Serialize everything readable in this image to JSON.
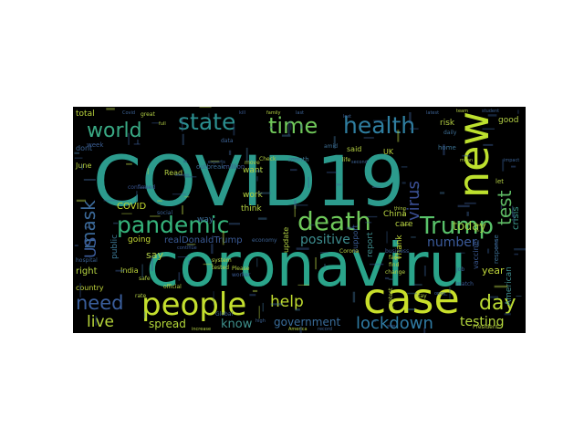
{
  "background_color": "#000000",
  "page_color": "#ffffff",
  "words": [
    {
      "text": "COVID19",
      "color": "#2c9b8d",
      "weight": 1.0
    },
    {
      "text": "coronaviru",
      "color": "#2aa48a",
      "weight": 0.95
    },
    {
      "text": "case",
      "color": "#c8df2a",
      "weight": 0.62
    },
    {
      "text": "new",
      "color": "#bde02e",
      "weight": 0.52
    },
    {
      "text": "people",
      "color": "#c4df2e",
      "weight": 0.5
    },
    {
      "text": "pandemic",
      "color": "#35b37b",
      "weight": 0.42
    },
    {
      "text": "death",
      "color": "#6ec85a",
      "weight": 0.38
    },
    {
      "text": "Trump",
      "color": "#58c16a",
      "weight": 0.36
    },
    {
      "text": "health",
      "color": "#2f7ea0",
      "weight": 0.35
    },
    {
      "text": "state",
      "color": "#2b8e8f",
      "weight": 0.33
    },
    {
      "text": "time",
      "color": "#70c85a",
      "weight": 0.33
    },
    {
      "text": "world",
      "color": "#39a984",
      "weight": 0.31
    },
    {
      "text": "day",
      "color": "#bcdc33",
      "weight": 0.3
    },
    {
      "text": "lockdown",
      "color": "#2f7aa2",
      "weight": 0.28
    },
    {
      "text": "need",
      "color": "#3a5e9c",
      "weight": 0.28
    },
    {
      "text": "test",
      "color": "#5eb964",
      "weight": 0.28
    },
    {
      "text": "mask",
      "color": "#3c6a9a",
      "weight": 0.27
    },
    {
      "text": "virus",
      "color": "#3a4e93",
      "weight": 0.26
    },
    {
      "text": "help",
      "color": "#c1dc2f",
      "weight": 0.24
    },
    {
      "text": "live",
      "color": "#b7d53a",
      "weight": 0.24
    },
    {
      "text": "US",
      "color": "#3b5c9b",
      "weight": 0.22
    },
    {
      "text": "positive",
      "color": "#3d8d8f",
      "weight": 0.2
    },
    {
      "text": "testing",
      "color": "#b4d73c",
      "weight": 0.2
    },
    {
      "text": "number",
      "color": "#3a5a9a",
      "weight": 0.18
    },
    {
      "text": "today",
      "color": "#9ccf45",
      "weight": 0.17
    },
    {
      "text": "know",
      "color": "#3e8f8b",
      "weight": 0.16
    },
    {
      "text": "spread",
      "color": "#b2d639",
      "weight": 0.16
    },
    {
      "text": "government",
      "color": "#3a6d9b",
      "weight": 0.14
    },
    {
      "text": "realDonaldTrump",
      "color": "#3a5a95",
      "weight": 0.14
    },
    {
      "text": "crisis",
      "color": "#3d9a8c",
      "weight": 0.13
    },
    {
      "text": "say",
      "color": "#b4d24a",
      "weight": 0.13
    },
    {
      "text": "right",
      "color": "#b7d541",
      "weight": 0.12
    },
    {
      "text": "year",
      "color": "#c0d73a",
      "weight": 0.12
    },
    {
      "text": "American",
      "color": "#3f8c8d",
      "weight": 0.11
    },
    {
      "text": "going",
      "color": "#c4d934",
      "weight": 0.11
    },
    {
      "text": "COVID",
      "color": "#c5dc2f",
      "weight": 0.11
    },
    {
      "text": "China",
      "color": "#b8d441",
      "weight": 0.1
    },
    {
      "text": "report",
      "color": "#3f8d8d",
      "weight": 0.1
    },
    {
      "text": "think",
      "color": "#b4d241",
      "weight": 0.1
    },
    {
      "text": "work",
      "color": "#b6d340",
      "weight": 0.1
    },
    {
      "text": "way",
      "color": "#3d6e9a",
      "weight": 0.1
    },
    {
      "text": "care",
      "color": "#b7d242",
      "weight": 0.1
    },
    {
      "text": "public",
      "color": "#3c7a97",
      "weight": 0.1
    },
    {
      "text": "support",
      "color": "#3b5e97",
      "weight": 0.09
    },
    {
      "text": "update",
      "color": "#b1d043",
      "weight": 0.09
    },
    {
      "text": "want",
      "color": "#b2d143",
      "weight": 0.09
    },
    {
      "text": "India",
      "color": "#bed63b",
      "weight": 0.09
    },
    {
      "text": "home",
      "color": "#3c7293",
      "weight": 0.08
    },
    {
      "text": "total",
      "color": "#bcd63d",
      "weight": 0.09
    },
    {
      "text": "risk",
      "color": "#b6d142",
      "weight": 0.09
    },
    {
      "text": "good",
      "color": "#b3cf44",
      "weight": 0.09
    },
    {
      "text": "Thank",
      "color": "#c1d837",
      "weight": 0.08
    },
    {
      "text": "UK",
      "color": "#bcd43e",
      "weight": 0.08
    },
    {
      "text": "dont",
      "color": "#3c6494",
      "weight": 0.08
    },
    {
      "text": "June",
      "color": "#b8d340",
      "weight": 0.08
    },
    {
      "text": "country",
      "color": "#c0d53b",
      "weight": 0.08
    },
    {
      "text": "vaccine",
      "color": "#3a5994",
      "weight": 0.08
    },
    {
      "text": "Read",
      "color": "#b4d043",
      "weight": 0.08
    },
    {
      "text": "response",
      "color": "#3c6f95",
      "weight": 0.07
    },
    {
      "text": "said",
      "color": "#b5d142",
      "weight": 0.08
    },
    {
      "text": "month",
      "color": "#3d7694",
      "weight": 0.07
    },
    {
      "text": "outbreak",
      "color": "#3c6a94",
      "weight": 0.07
    },
    {
      "text": "million",
      "color": "#3d5290",
      "weight": 0.07
    },
    {
      "text": "week",
      "color": "#3b5e94",
      "weight": 0.07
    },
    {
      "text": "let",
      "color": "#b3cf44",
      "weight": 0.07
    },
    {
      "text": "data",
      "color": "#3c6294",
      "weight": 0.06
    },
    {
      "text": "life",
      "color": "#b5d042",
      "weight": 0.06
    },
    {
      "text": "business",
      "color": "#3a5a94",
      "weight": 0.06
    },
    {
      "text": "confirmed",
      "color": "#3a5591",
      "weight": 0.06
    },
    {
      "text": "hospital",
      "color": "#3b6293",
      "weight": 0.06
    },
    {
      "text": "protest",
      "color": "#b1ce45",
      "weight": 0.06
    },
    {
      "text": "Please",
      "color": "#b5d042",
      "weight": 0.06
    },
    {
      "text": "safe",
      "color": "#b1ce45",
      "weight": 0.06
    },
    {
      "text": "official",
      "color": "#b3cf44",
      "weight": 0.06
    },
    {
      "text": "find",
      "color": "#b2cf44",
      "weight": 0.06
    },
    {
      "text": "change",
      "color": "#b4d043",
      "weight": 0.06
    },
    {
      "text": "second",
      "color": "#3c6294",
      "weight": 0.06
    },
    {
      "text": "face",
      "color": "#b3cf44",
      "weight": 0.06
    },
    {
      "text": "job",
      "color": "#3b5e94",
      "weight": 0.05
    },
    {
      "text": "match",
      "color": "#3a5a94",
      "weight": 0.05
    },
    {
      "text": "President",
      "color": "#b7d241",
      "weight": 0.05
    },
    {
      "text": "daily",
      "color": "#3d6e94",
      "weight": 0.05
    },
    {
      "text": "Check",
      "color": "#b5d042",
      "weight": 0.05
    },
    {
      "text": "great",
      "color": "#b3cf44",
      "weight": 0.05
    },
    {
      "text": "social",
      "color": "#3c6294",
      "weight": 0.05
    },
    {
      "text": "record",
      "color": "#3c6294",
      "weight": 0.05
    },
    {
      "text": "America",
      "color": "#b4d043",
      "weight": 0.05
    },
    {
      "text": "Global",
      "color": "#3c6294",
      "weight": 0.05
    },
    {
      "text": "Corona",
      "color": "#b5d042",
      "weight": 0.05
    },
    {
      "text": "economy",
      "color": "#3c6294",
      "weight": 0.05
    },
    {
      "text": "worker",
      "color": "#3a5a94",
      "weight": 0.05
    },
    {
      "text": "system",
      "color": "#b4d043",
      "weight": 0.05
    },
    {
      "text": "increase",
      "color": "#b3cf44",
      "weight": 0.05
    },
    {
      "text": "rate",
      "color": "#b3cf44",
      "weight": 0.05
    },
    {
      "text": "high",
      "color": "#3c6294",
      "weight": 0.05
    },
    {
      "text": "stay",
      "color": "#b5d042",
      "weight": 0.05
    },
    {
      "text": "amid",
      "color": "#3d6e94",
      "weight": 0.05
    },
    {
      "text": "move",
      "color": "#b4d043",
      "weight": 0.05
    },
    {
      "text": "impact",
      "color": "#3c6294",
      "weight": 0.05
    },
    {
      "text": "latest",
      "color": "#3c6294",
      "weight": 0.05
    },
    {
      "text": "continue",
      "color": "#3a5a94",
      "weight": 0.05
    },
    {
      "text": "tested",
      "color": "#b3cf44",
      "weight": 0.05
    },
    {
      "text": "experts",
      "color": "#3c6294",
      "weight": 0.04
    },
    {
      "text": "thing",
      "color": "#b4d043",
      "weight": 0.04
    },
    {
      "text": "lost",
      "color": "#3c6294",
      "weight": 0.04
    },
    {
      "text": "last",
      "color": "#3c6294",
      "weight": 0.04
    },
    {
      "text": "full",
      "color": "#b3cf44",
      "weight": 0.04
    },
    {
      "text": "kill",
      "color": "#3a5a94",
      "weight": 0.04
    },
    {
      "text": "team",
      "color": "#b4d043",
      "weight": 0.04
    },
    {
      "text": "student",
      "color": "#3c6294",
      "weight": 0.04
    },
    {
      "text": "Covid",
      "color": "#3c6294",
      "weight": 0.04
    },
    {
      "text": "mean",
      "color": "#b3cf44",
      "weight": 0.04
    },
    {
      "text": "open",
      "color": "#3c6294",
      "weight": 0.04
    },
    {
      "text": "family",
      "color": "#b4d043",
      "weight": 0.04
    }
  ]
}
